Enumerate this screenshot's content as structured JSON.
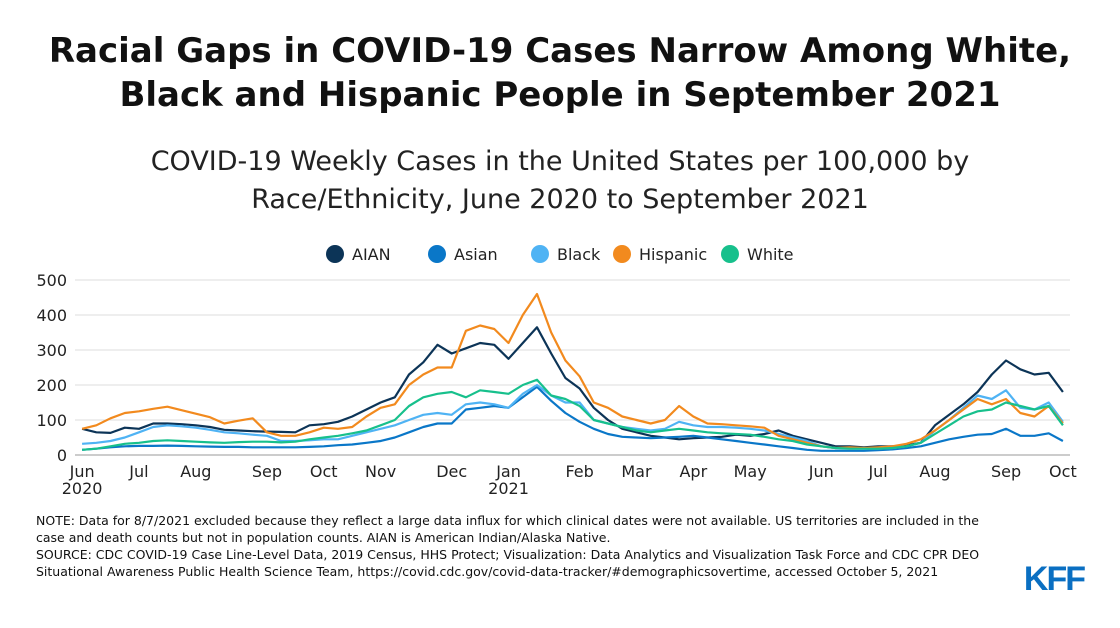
{
  "chart_data": {
    "type": "line",
    "title": [
      "Racial Gaps in COVID-19 Cases Narrow Among White,",
      "Black and Hispanic People in September 2021"
    ],
    "subtitle": [
      "COVID-19 Weekly Cases in the United States per 100,000 by",
      "Race/Ethnicity, June 2020 to September 2021"
    ],
    "categories": [
      "Jun 2020",
      null,
      null,
      null,
      "Jul",
      null,
      null,
      null,
      "Aug",
      null,
      null,
      null,
      null,
      "Sep",
      null,
      null,
      null,
      "Oct",
      null,
      null,
      null,
      "Nov",
      null,
      null,
      null,
      null,
      "Dec",
      null,
      null,
      null,
      "Jan 2021",
      null,
      null,
      null,
      null,
      "Feb",
      null,
      null,
      null,
      "Mar",
      null,
      null,
      null,
      "Apr",
      null,
      null,
      null,
      "May",
      null,
      null,
      null,
      null,
      "Jun",
      null,
      null,
      null,
      "Jul",
      null,
      null,
      null,
      "Aug",
      null,
      null,
      null,
      null,
      "Sep",
      null,
      null,
      null,
      "Oct"
    ],
    "series": [
      {
        "name": "AIAN",
        "color": "#0c3457",
        "values": [
          75,
          65,
          63,
          78,
          75,
          90,
          90,
          88,
          85,
          80,
          72,
          70,
          68,
          67,
          66,
          65,
          85,
          88,
          95,
          110,
          130,
          150,
          165,
          230,
          265,
          315,
          290,
          305,
          320,
          315,
          275,
          320,
          365,
          290,
          220,
          190,
          135,
          100,
          75,
          65,
          55,
          50,
          45,
          48,
          50,
          52,
          58,
          55,
          60,
          70,
          55,
          45,
          35,
          25,
          25,
          22,
          25,
          25,
          28,
          35,
          85,
          115,
          145,
          180,
          230,
          270,
          245,
          230,
          235,
          180
        ]
      },
      {
        "name": "Asian",
        "color": "#0a77c8",
        "values": [
          15,
          18,
          22,
          25,
          26,
          26,
          27,
          26,
          25,
          24,
          23,
          23,
          22,
          22,
          22,
          22,
          23,
          25,
          28,
          30,
          35,
          40,
          50,
          65,
          80,
          90,
          90,
          130,
          135,
          140,
          135,
          165,
          195,
          155,
          120,
          95,
          75,
          60,
          52,
          50,
          48,
          50,
          52,
          55,
          50,
          45,
          40,
          35,
          30,
          25,
          20,
          15,
          12,
          12,
          12,
          12,
          14,
          16,
          20,
          25,
          35,
          45,
          52,
          58,
          60,
          75,
          55,
          55,
          62,
          40
        ]
      },
      {
        "name": "Black",
        "color": "#4fb3f4",
        "values": [
          32,
          35,
          40,
          50,
          65,
          80,
          85,
          82,
          78,
          72,
          65,
          62,
          58,
          55,
          40,
          40,
          42,
          45,
          45,
          55,
          65,
          75,
          85,
          100,
          115,
          120,
          115,
          145,
          150,
          145,
          135,
          175,
          200,
          170,
          150,
          150,
          100,
          90,
          80,
          75,
          70,
          75,
          95,
          85,
          80,
          80,
          78,
          75,
          70,
          60,
          50,
          40,
          25,
          20,
          18,
          18,
          18,
          20,
          25,
          35,
          70,
          100,
          135,
          170,
          160,
          185,
          135,
          130,
          150,
          95
        ]
      },
      {
        "name": "Hispanic",
        "color": "#f28a1e",
        "values": [
          75,
          85,
          105,
          120,
          125,
          132,
          138,
          128,
          118,
          108,
          90,
          98,
          105,
          65,
          55,
          55,
          65,
          78,
          75,
          80,
          110,
          135,
          145,
          200,
          230,
          250,
          250,
          355,
          370,
          360,
          320,
          400,
          460,
          350,
          270,
          225,
          150,
          135,
          110,
          100,
          90,
          100,
          140,
          110,
          90,
          88,
          85,
          82,
          78,
          55,
          45,
          35,
          25,
          20,
          22,
          20,
          22,
          25,
          32,
          45,
          70,
          100,
          130,
          160,
          145,
          160,
          120,
          110,
          140,
          90
        ]
      },
      {
        "name": "White",
        "color": "#17c08c",
        "values": [
          15,
          18,
          25,
          32,
          35,
          40,
          42,
          40,
          38,
          36,
          35,
          37,
          38,
          38,
          36,
          38,
          45,
          50,
          55,
          62,
          70,
          85,
          100,
          140,
          165,
          175,
          180,
          165,
          185,
          180,
          175,
          200,
          215,
          170,
          160,
          140,
          100,
          90,
          80,
          70,
          65,
          70,
          75,
          70,
          65,
          62,
          60,
          58,
          52,
          45,
          40,
          30,
          25,
          20,
          18,
          18,
          18,
          20,
          25,
          35,
          60,
          85,
          110,
          125,
          130,
          150,
          140,
          130,
          140,
          85
        ]
      }
    ],
    "ylim": [
      0,
      500
    ],
    "yticks": [
      0,
      100,
      200,
      300,
      400,
      500
    ],
    "grid": true,
    "legend": "top",
    "note": "NOTE: Data for 8/7/2021 excluded because they reflect a large data influx for which clinical dates were not available. US territories are included in the case and death counts but not in population counts. AIAN is American Indian/Alaska Native.",
    "source": "SOURCE: CDC COVID-19 Case Line-Level Data, 2019 Census, HHS Protect; Visualization: Data Analytics and Visualization Task Force and CDC CPR DEO Situational Awareness Public Health Science Team, https://covid.cdc.gov/covid-data-tracker/#demographicsovertime, accessed October 5, 2021",
    "logo": "KFF"
  }
}
